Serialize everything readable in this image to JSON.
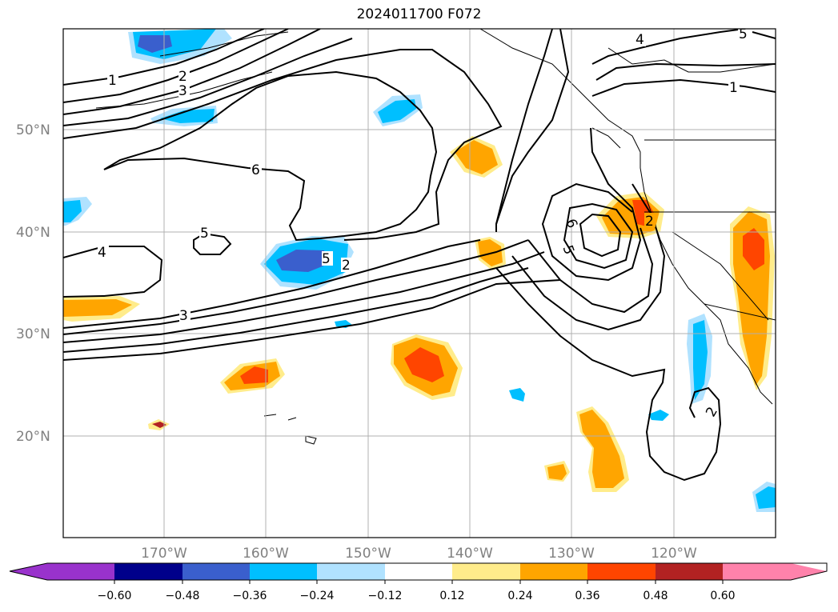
{
  "title": "2024011700 F072",
  "lat_labels": [
    "50°N",
    "40°N",
    "30°N",
    "20°N"
  ],
  "lon_labels": [
    "170°W",
    "160°W",
    "150°W",
    "140°W",
    "130°W",
    "120°W"
  ],
  "colorbar": {
    "ticks": [
      "−0.60",
      "−0.48",
      "−0.36",
      "−0.24",
      "−0.12",
      "0.12",
      "0.24",
      "0.36",
      "0.48",
      "0.60"
    ],
    "colors": [
      "#9932cc",
      "#00008b",
      "#3a5fcd",
      "#00bfff",
      "#b0e2ff",
      "#ffffff",
      "#ffec8b",
      "#ffa500",
      "#ff4500",
      "#b22222",
      "#ff82ab"
    ]
  },
  "contour_labels": [
    "1",
    "2",
    "3",
    "6",
    "5",
    "4",
    "5",
    "6",
    "3",
    "6",
    "5",
    "2",
    "4",
    "5",
    "1",
    "2"
  ]
}
